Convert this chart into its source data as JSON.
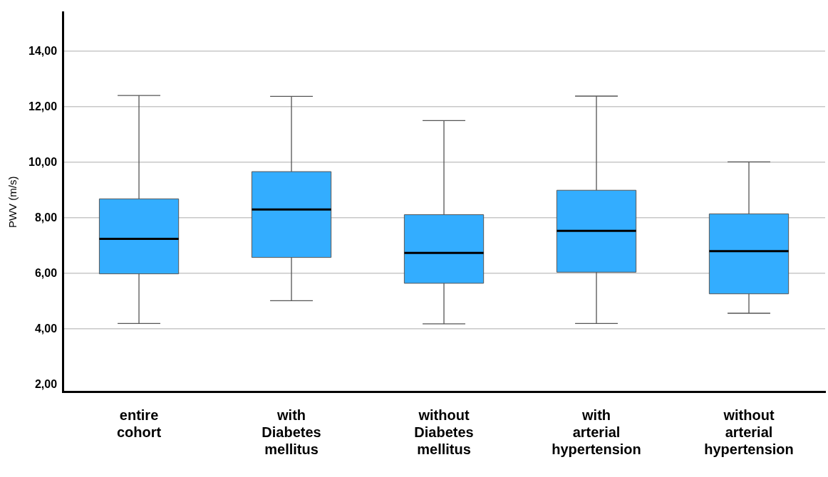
{
  "chart_data": {
    "type": "box",
    "ylabel": "PWV (m/s)",
    "categories": [
      "entire cohort",
      "with Diabetes mellitus",
      "without Diabetes mellitus",
      "with arterial hypertension",
      "without arterial hypertension"
    ],
    "series": [
      {
        "color": "#33adff",
        "boxes": [
          {
            "low": 4.2,
            "q1": 5.99,
            "median": 7.25,
            "q3": 8.69,
            "high": 12.41
          },
          {
            "low": 5.02,
            "q1": 6.58,
            "median": 8.31,
            "q3": 9.67,
            "high": 12.38
          },
          {
            "low": 4.19,
            "q1": 5.65,
            "median": 6.74,
            "q3": 8.12,
            "high": 11.51
          },
          {
            "low": 4.2,
            "q1": 6.05,
            "median": 7.54,
            "q3": 9.0,
            "high": 12.39
          },
          {
            "low": 4.57,
            "q1": 5.27,
            "median": 6.81,
            "q3": 8.15,
            "high": 10.02
          }
        ]
      }
    ],
    "ylim": [
      1.75,
      15.4
    ],
    "yticks": [
      {
        "value": 2,
        "label": "2,00"
      },
      {
        "value": 4,
        "label": "4,00"
      },
      {
        "value": 6,
        "label": "6,00"
      },
      {
        "value": 8,
        "label": "8,00"
      },
      {
        "value": 10,
        "label": "10,00"
      },
      {
        "value": 12,
        "label": "12,00"
      },
      {
        "value": 14,
        "label": "14,00"
      }
    ],
    "grid": "y",
    "legend": false
  }
}
